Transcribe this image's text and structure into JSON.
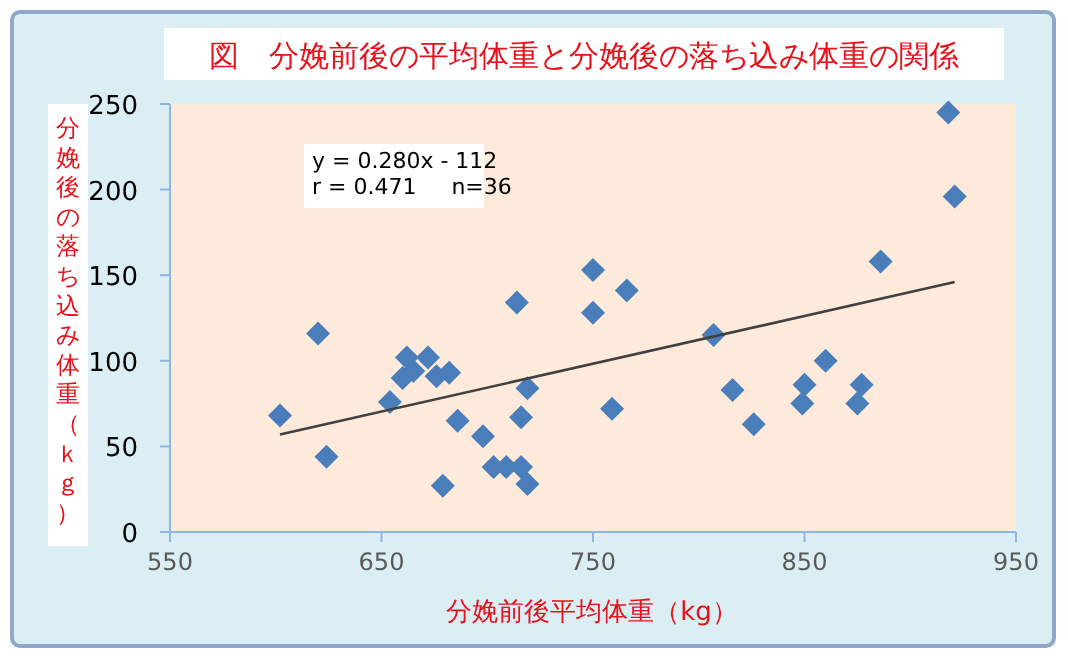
{
  "chart_data": {
    "type": "scatter",
    "title": "図　分娩前後の平均体重と分娩後の落ち込み体重の関係",
    "xlabel": "分娩前後平均体重（kg）",
    "ylabel": "分娩後の落ち込み体重（ｋｇ）",
    "annotations": [
      "y = 0.280x - 112",
      "r = 0.471     n=36"
    ],
    "xlim": [
      550,
      950
    ],
    "xticks": [
      550,
      650,
      750,
      850,
      950
    ],
    "ylim": [
      0,
      250
    ],
    "yticks": [
      0,
      50,
      100,
      150,
      200,
      250
    ],
    "marker": "diamond",
    "series": [
      {
        "type": "scatter",
        "color": "#4a7ebb",
        "x": [
          602,
          620,
          624,
          654,
          662,
          660,
          665,
          672,
          676,
          682,
          679,
          686,
          698,
          703,
          709,
          716,
          719,
          716,
          719,
          714,
          750,
          750,
          766,
          759,
          807,
          816,
          826,
          850,
          849,
          860,
          877,
          875,
          886,
          918,
          921
        ],
        "values": [
          68,
          116,
          44,
          76,
          102,
          90,
          94,
          102,
          91,
          93,
          27,
          65,
          56,
          38,
          38,
          38,
          28,
          67,
          84,
          134,
          153,
          128,
          141,
          72,
          115,
          83,
          63,
          86,
          75,
          100,
          86,
          75,
          158,
          245,
          196
        ]
      },
      {
        "type": "line",
        "color": "#404040",
        "marker": "none",
        "x": [
          602,
          921
        ],
        "values": [
          57,
          146
        ]
      }
    ]
  }
}
